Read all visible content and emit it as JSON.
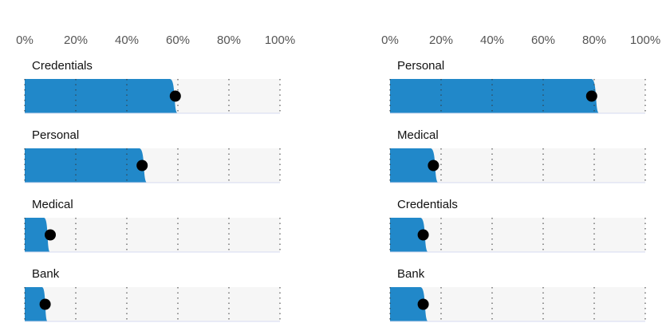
{
  "colors": {
    "bar": "#2188c9",
    "track": "#f6f6f6",
    "marker": "#000000",
    "gridline": "#333333",
    "baseline": "#d6dbf0"
  },
  "chart_data": [
    {
      "type": "bar",
      "orientation": "horizontal",
      "xlim": [
        0,
        100
      ],
      "x_ticks": [
        "0%",
        "20%",
        "40%",
        "60%",
        "80%",
        "100%"
      ],
      "grid": "dotted-vertical",
      "categories": [
        "Credentials",
        "Personal",
        "Medical",
        "Bank"
      ],
      "values": [
        60,
        48,
        10,
        9
      ],
      "markers": [
        59,
        46,
        10,
        8
      ]
    },
    {
      "type": "bar",
      "orientation": "horizontal",
      "xlim": [
        0,
        100
      ],
      "x_ticks": [
        "0%",
        "20%",
        "40%",
        "60%",
        "80%",
        "100%"
      ],
      "grid": "dotted-vertical",
      "categories": [
        "Personal",
        "Medical",
        "Credentials",
        "Bank"
      ],
      "values": [
        82,
        19,
        15,
        15
      ],
      "markers": [
        79,
        17,
        13,
        13
      ]
    }
  ]
}
